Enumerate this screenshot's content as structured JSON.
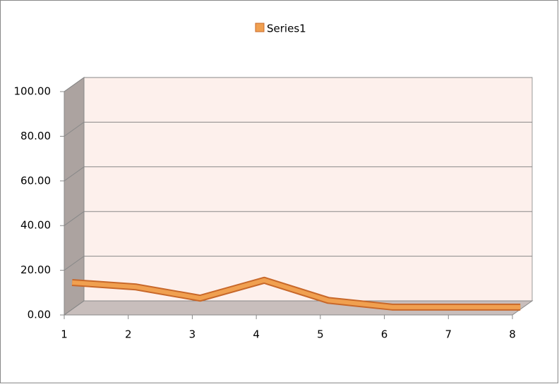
{
  "chart_data": {
    "type": "line3d",
    "x": [
      1,
      2,
      3,
      4,
      5,
      6,
      7,
      8
    ],
    "xlim": [
      1,
      8
    ],
    "xticks": [
      1,
      2,
      3,
      4,
      5,
      6,
      7,
      8
    ],
    "series": [
      {
        "name": "Series1",
        "color": "#f0a050",
        "values": [
          12,
          10,
          5,
          13,
          4,
          1,
          1,
          1
        ]
      }
    ],
    "ylim": [
      0,
      100
    ],
    "yticks": [
      {
        "value": 0,
        "label": "0.00"
      },
      {
        "value": 20,
        "label": "20.00"
      },
      {
        "value": 40,
        "label": "40.00"
      },
      {
        "value": 60,
        "label": "60.00"
      },
      {
        "value": 80,
        "label": "80.00"
      },
      {
        "value": 100,
        "label": "100.00"
      }
    ],
    "grid": true,
    "legend": "top"
  }
}
